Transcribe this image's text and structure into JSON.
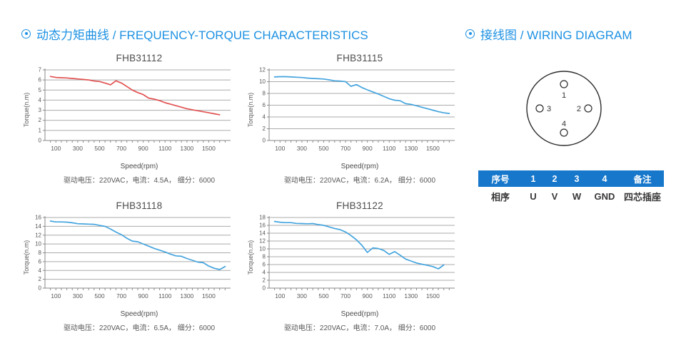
{
  "sections": {
    "torque": {
      "icon": "circle-dot-icon",
      "title": "动态力矩曲线 / FREQUENCY-TORQUE CHARACTERISTICS"
    },
    "wiring": {
      "icon": "circle-dot-icon",
      "title": "接线图 / WIRING DIAGRAM"
    }
  },
  "colors": {
    "title_blue": "#1d91e3",
    "table_header_blue": "#1677cb",
    "red_series": "#e25252",
    "blue_series": "#44a4de",
    "gridline": "#ababab",
    "axis": "#8a8a8a"
  },
  "chart_data": [
    {
      "type": "line",
      "title": "FHB31112",
      "ylabel": "Torque(n.m)",
      "xlabel": "Speed(rpm)",
      "caption": "驱动电压：220VAC，电流：4.5A， 细分：6000",
      "color": "#e25252",
      "ylim": [
        0,
        7
      ],
      "ystep": 1,
      "xlim": [
        0,
        1700
      ],
      "xticks": [
        100,
        300,
        500,
        700,
        900,
        1100,
        1300,
        1500
      ],
      "grid": true,
      "legend": "none",
      "points": [
        [
          50,
          6.35
        ],
        [
          100,
          6.25
        ],
        [
          150,
          6.22
        ],
        [
          200,
          6.2
        ],
        [
          250,
          6.15
        ],
        [
          300,
          6.1
        ],
        [
          350,
          6.05
        ],
        [
          400,
          6.0
        ],
        [
          450,
          5.9
        ],
        [
          500,
          5.85
        ],
        [
          550,
          5.7
        ],
        [
          600,
          5.52
        ],
        [
          650,
          5.92
        ],
        [
          700,
          5.7
        ],
        [
          750,
          5.35
        ],
        [
          800,
          5.0
        ],
        [
          850,
          4.75
        ],
        [
          900,
          4.55
        ],
        [
          950,
          4.2
        ],
        [
          1000,
          4.1
        ],
        [
          1050,
          3.95
        ],
        [
          1100,
          3.75
        ],
        [
          1150,
          3.6
        ],
        [
          1200,
          3.45
        ],
        [
          1250,
          3.3
        ],
        [
          1300,
          3.15
        ],
        [
          1350,
          3.05
        ],
        [
          1400,
          2.95
        ],
        [
          1450,
          2.85
        ],
        [
          1500,
          2.75
        ],
        [
          1550,
          2.65
        ],
        [
          1600,
          2.55
        ]
      ]
    },
    {
      "type": "line",
      "title": "FHB31115",
      "ylabel": "Torque(n.m)",
      "xlabel": "Speed(rpm)",
      "caption": "驱动电压：220VAC，电流：6.2A， 细分：6000",
      "color": "#44a4de",
      "ylim": [
        0,
        12
      ],
      "ystep": 2,
      "xlim": [
        0,
        1700
      ],
      "xticks": [
        100,
        300,
        500,
        700,
        900,
        1100,
        1300,
        1500
      ],
      "grid": true,
      "legend": "none",
      "points": [
        [
          50,
          10.8
        ],
        [
          100,
          10.85
        ],
        [
          150,
          10.85
        ],
        [
          200,
          10.8
        ],
        [
          250,
          10.75
        ],
        [
          300,
          10.7
        ],
        [
          350,
          10.6
        ],
        [
          400,
          10.55
        ],
        [
          450,
          10.5
        ],
        [
          500,
          10.45
        ],
        [
          550,
          10.3
        ],
        [
          600,
          10.15
        ],
        [
          650,
          10.1
        ],
        [
          700,
          10.0
        ],
        [
          750,
          9.2
        ],
        [
          800,
          9.5
        ],
        [
          850,
          9.0
        ],
        [
          900,
          8.6
        ],
        [
          950,
          8.25
        ],
        [
          1000,
          7.9
        ],
        [
          1050,
          7.5
        ],
        [
          1100,
          7.1
        ],
        [
          1150,
          6.85
        ],
        [
          1200,
          6.75
        ],
        [
          1250,
          6.25
        ],
        [
          1300,
          6.15
        ],
        [
          1350,
          5.9
        ],
        [
          1400,
          5.65
        ],
        [
          1450,
          5.4
        ],
        [
          1500,
          5.15
        ],
        [
          1550,
          4.9
        ],
        [
          1600,
          4.7
        ],
        [
          1650,
          4.6
        ]
      ]
    },
    {
      "type": "line",
      "title": "FHB31118",
      "ylabel": "Torque(n.m)",
      "xlabel": "Speed(rpm)",
      "caption": "驱动电压：220VAC，电流：6.5A， 细分：6000",
      "color": "#44a4de",
      "ylim": [
        0,
        16
      ],
      "ystep": 2,
      "xlim": [
        0,
        1700
      ],
      "xticks": [
        100,
        300,
        500,
        700,
        900,
        1100,
        1300,
        1500
      ],
      "grid": true,
      "legend": "none",
      "points": [
        [
          50,
          15.2
        ],
        [
          100,
          15.0
        ],
        [
          150,
          15.0
        ],
        [
          200,
          14.95
        ],
        [
          250,
          14.8
        ],
        [
          300,
          14.6
        ],
        [
          350,
          14.55
        ],
        [
          400,
          14.5
        ],
        [
          450,
          14.45
        ],
        [
          500,
          14.2
        ],
        [
          550,
          14.0
        ],
        [
          600,
          13.4
        ],
        [
          650,
          12.7
        ],
        [
          700,
          12.1
        ],
        [
          750,
          11.3
        ],
        [
          800,
          10.65
        ],
        [
          850,
          10.5
        ],
        [
          900,
          10.0
        ],
        [
          950,
          9.5
        ],
        [
          1000,
          9.0
        ],
        [
          1050,
          8.6
        ],
        [
          1100,
          8.2
        ],
        [
          1150,
          7.7
        ],
        [
          1200,
          7.3
        ],
        [
          1250,
          7.2
        ],
        [
          1300,
          6.7
        ],
        [
          1350,
          6.3
        ],
        [
          1400,
          5.9
        ],
        [
          1450,
          5.75
        ],
        [
          1500,
          5.0
        ],
        [
          1550,
          4.5
        ],
        [
          1600,
          4.2
        ],
        [
          1650,
          4.9
        ]
      ]
    },
    {
      "type": "line",
      "title": "FHB31122",
      "ylabel": "Torque(n.m)",
      "xlabel": "Speed(rpm)",
      "caption": "驱动电压：220VAC，电流：7.0A， 细分：6000",
      "color": "#44a4de",
      "ylim": [
        0,
        18
      ],
      "ystep": 2,
      "xlim": [
        0,
        1700
      ],
      "xticks": [
        100,
        300,
        500,
        700,
        900,
        1100,
        1300,
        1500
      ],
      "grid": true,
      "legend": "none",
      "points": [
        [
          50,
          17.0
        ],
        [
          100,
          16.8
        ],
        [
          150,
          16.7
        ],
        [
          200,
          16.7
        ],
        [
          250,
          16.5
        ],
        [
          300,
          16.45
        ],
        [
          350,
          16.4
        ],
        [
          400,
          16.45
        ],
        [
          450,
          16.2
        ],
        [
          500,
          16.0
        ],
        [
          550,
          15.6
        ],
        [
          600,
          15.2
        ],
        [
          650,
          14.9
        ],
        [
          700,
          14.3
        ],
        [
          750,
          13.4
        ],
        [
          800,
          12.3
        ],
        [
          850,
          10.9
        ],
        [
          900,
          9.1
        ],
        [
          950,
          10.25
        ],
        [
          1000,
          10.1
        ],
        [
          1050,
          9.6
        ],
        [
          1100,
          8.6
        ],
        [
          1150,
          9.3
        ],
        [
          1200,
          8.4
        ],
        [
          1250,
          7.4
        ],
        [
          1300,
          6.9
        ],
        [
          1350,
          6.4
        ],
        [
          1400,
          6.1
        ],
        [
          1450,
          5.8
        ],
        [
          1500,
          5.5
        ],
        [
          1550,
          4.9
        ],
        [
          1600,
          5.9
        ]
      ]
    }
  ],
  "wiring": {
    "connector": {
      "pins": [
        {
          "label": "1",
          "position": "top"
        },
        {
          "label": "2",
          "position": "right"
        },
        {
          "label": "3",
          "position": "left"
        },
        {
          "label": "4",
          "position": "bottom"
        }
      ]
    },
    "table": {
      "headers": [
        "序号",
        "1",
        "2",
        "3",
        "4",
        "备注"
      ],
      "rows": [
        [
          "相序",
          "U",
          "V",
          "W",
          "GND",
          "四芯插座"
        ]
      ]
    }
  }
}
